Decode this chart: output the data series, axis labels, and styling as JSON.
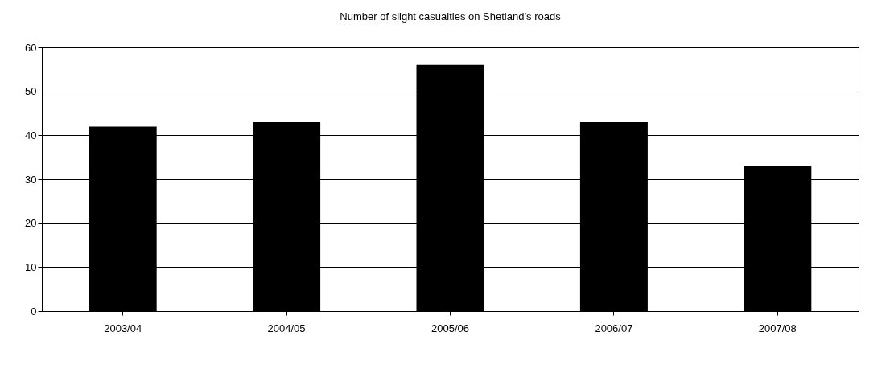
{
  "chart_data": {
    "type": "bar",
    "title": "Number of slight casualties on Shetland’s roads",
    "categories": [
      "2003/04",
      "2004/05",
      "2005/06",
      "2006/07",
      "2007/08"
    ],
    "values": [
      42,
      43,
      56,
      43,
      33
    ],
    "color": "#000000",
    "ylim": [
      0,
      60
    ],
    "yticks": [
      0,
      10,
      20,
      30,
      40,
      50,
      60
    ],
    "grid": "y"
  }
}
